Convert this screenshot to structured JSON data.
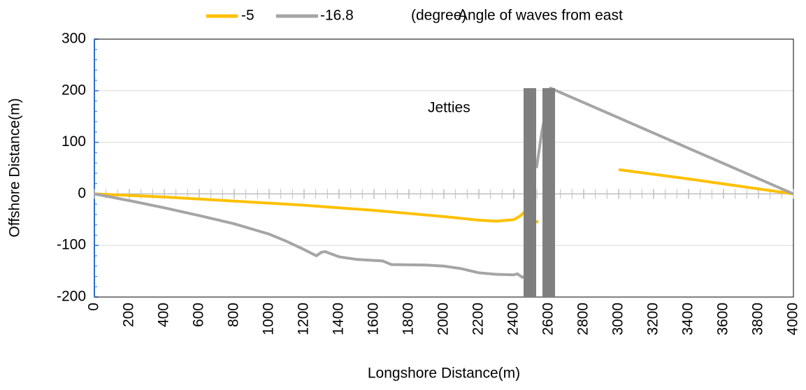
{
  "chart_data": {
    "type": "line",
    "legend_note": "(degree)",
    "legend_title": "Angle of waves from east",
    "annotation": "Jetties",
    "xlabel": "Longshore Distance(m)",
    "ylabel": "Offshore Distance(m)",
    "xlim": [
      0,
      4000
    ],
    "ylim": [
      -200,
      300
    ],
    "xticks": [
      0,
      200,
      400,
      600,
      800,
      1000,
      1200,
      1400,
      1600,
      1800,
      2000,
      2200,
      2400,
      2600,
      2800,
      3000,
      3200,
      3400,
      3600,
      3800,
      4000
    ],
    "yticks": [
      -200,
      -100,
      0,
      100,
      200,
      300
    ],
    "grid": true,
    "jetties": {
      "x": [
        2492,
        2600
      ],
      "top": 205,
      "color": "#7f7f7f"
    },
    "series": [
      {
        "name": "-5",
        "color": "#ffc000",
        "x": [
          0,
          200,
          400,
          600,
          800,
          1000,
          1200,
          1400,
          1600,
          1800,
          2000,
          2200,
          2300,
          2400,
          2440,
          2460,
          2475,
          2500,
          2540,
          2600,
          3000,
          3400,
          4000
        ],
        "values": [
          0,
          -3,
          -6,
          -10,
          -14,
          -18,
          -22,
          -27,
          -32,
          -38,
          -44,
          -51,
          -53,
          -50,
          -42,
          -35,
          -45,
          -50,
          -55,
          null,
          47,
          29,
          0
        ]
      },
      {
        "name": "-16.8",
        "color": "#a5a5a5",
        "x": [
          0,
          200,
          400,
          600,
          800,
          1000,
          1100,
          1200,
          1270,
          1300,
          1320,
          1400,
          1500,
          1650,
          1700,
          1900,
          2000,
          2100,
          2200,
          2300,
          2400,
          2420,
          2450,
          2470,
          2500,
          2530,
          2560,
          2610,
          4000
        ],
        "values": [
          0,
          -13,
          -27,
          -42,
          -58,
          -78,
          -92,
          -108,
          -120,
          -113,
          -112,
          -122,
          -127,
          -130,
          -137,
          -138,
          -140,
          -145,
          -153,
          -156,
          -157,
          -155,
          -162,
          -158,
          null,
          50,
          120,
          205,
          0
        ]
      }
    ]
  }
}
